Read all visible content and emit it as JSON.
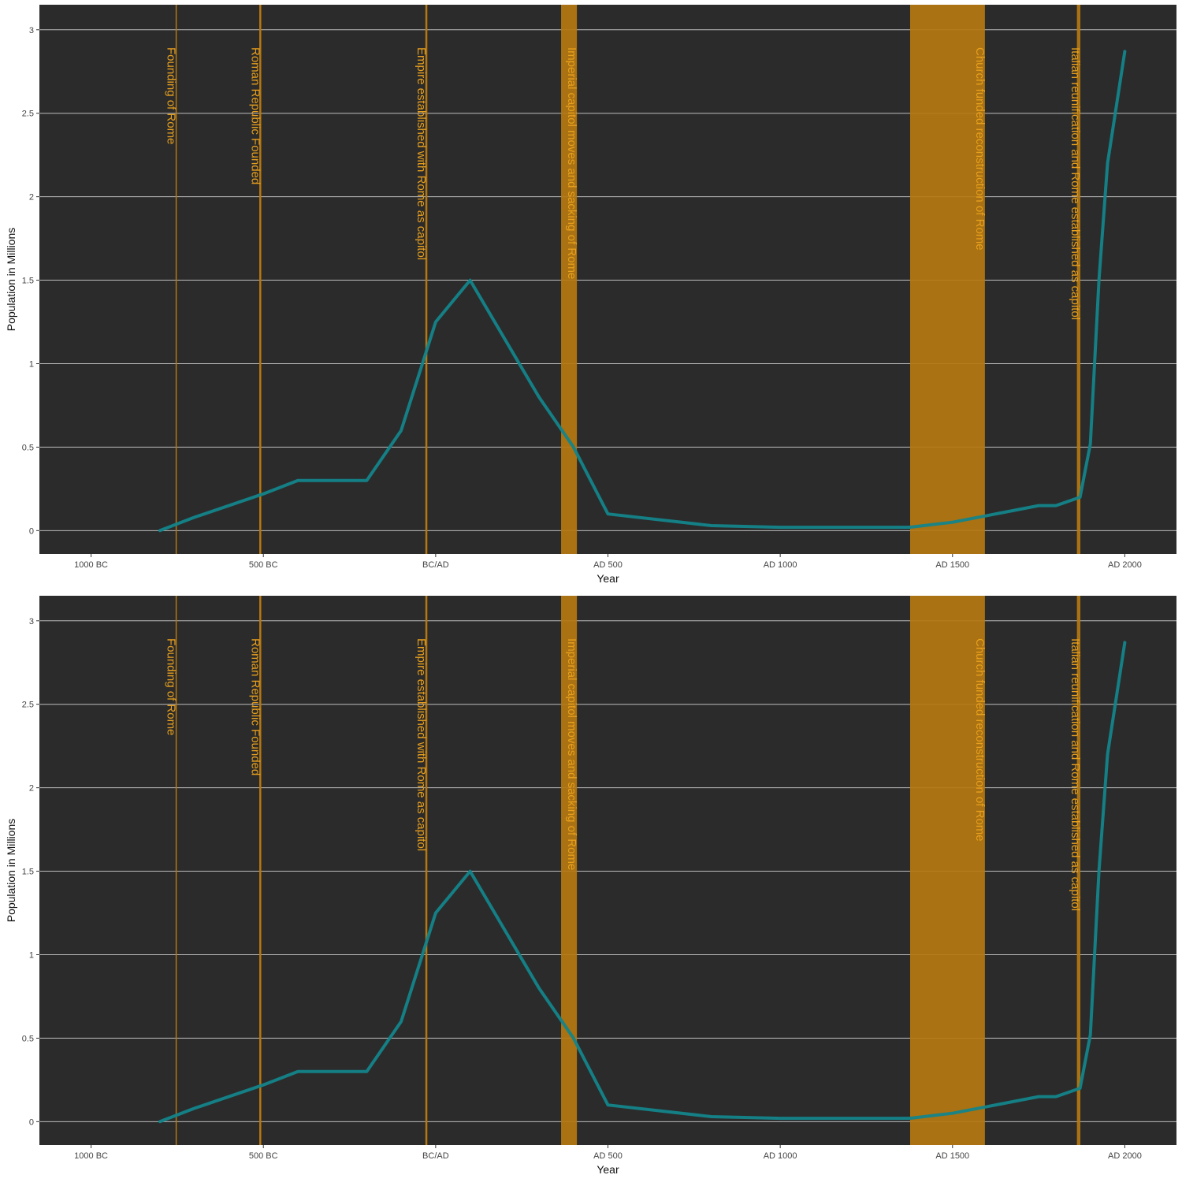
{
  "chart_data": [
    {
      "type": "line",
      "title": "",
      "xlabel": "Year",
      "ylabel": "Population in Millions",
      "xlim": [
        -1150,
        2150
      ],
      "ylim": [
        -0.14,
        3.15
      ],
      "x_ticks": [
        {
          "value": -1000,
          "label": "1000 BC"
        },
        {
          "value": -500,
          "label": "500 BC"
        },
        {
          "value": 0,
          "label": "BC/AD"
        },
        {
          "value": 500,
          "label": "AD 500"
        },
        {
          "value": 1000,
          "label": "AD 1000"
        },
        {
          "value": 1500,
          "label": "AD 1500"
        },
        {
          "value": 2000,
          "label": "AD 2000"
        }
      ],
      "y_ticks": [
        {
          "value": 0,
          "label": "0"
        },
        {
          "value": 0.5,
          "label": "0.5"
        },
        {
          "value": 1,
          "label": "1"
        },
        {
          "value": 1.5,
          "label": "1.5"
        },
        {
          "value": 2,
          "label": "2"
        },
        {
          "value": 2.5,
          "label": "2.5"
        },
        {
          "value": 3,
          "label": "3"
        }
      ],
      "grid": true,
      "colors": {
        "panel": "#2b2b2b",
        "grid": "#bdbdbd",
        "line": "#13848a",
        "event": "#b57810",
        "event_label": "#e8a01e",
        "axis_text": "#444444",
        "axis_title": "#111111"
      },
      "series": [
        {
          "x": [
            -800,
            -700,
            -500,
            -400,
            -200,
            -100,
            0,
            100,
            300,
            400,
            500,
            800,
            1000,
            1375,
            1500,
            1600,
            1750,
            1800,
            1870,
            1900,
            1925,
            1950,
            2000
          ],
          "y": [
            0.0,
            0.08,
            0.22,
            0.3,
            0.3,
            0.6,
            1.25,
            1.5,
            0.8,
            0.5,
            0.1,
            0.03,
            0.02,
            0.02,
            0.05,
            0.09,
            0.15,
            0.15,
            0.2,
            0.52,
            1.5,
            2.2,
            2.87
          ]
        }
      ],
      "events": [
        {
          "type": "line",
          "start": -753,
          "end": -753,
          "label": "Founding of Rome"
        },
        {
          "type": "line",
          "start": -509,
          "end": -509,
          "label": "Roman Republic Founded"
        },
        {
          "type": "line",
          "start": -27,
          "end": -27,
          "label": "Empire established with Rome as capitol"
        },
        {
          "type": "band",
          "start": 364,
          "end": 410,
          "label": "Imperial capitol moves and sacking of Rome"
        },
        {
          "type": "band",
          "start": 1377,
          "end": 1594,
          "label": "Church funded reconstruction of Rome"
        },
        {
          "type": "band",
          "start": 1861,
          "end": 1871,
          "label": "Italian reunification and Rome established as capitol"
        }
      ]
    },
    {
      "type": "line",
      "title": "",
      "xlabel": "Year",
      "ylabel": "Population in Millions",
      "xlim": [
        -1150,
        2150
      ],
      "ylim": [
        -0.14,
        3.15
      ],
      "x_ticks": [
        {
          "value": -1000,
          "label": "1000 BC"
        },
        {
          "value": -500,
          "label": "500 BC"
        },
        {
          "value": 0,
          "label": "BC/AD"
        },
        {
          "value": 500,
          "label": "AD 500"
        },
        {
          "value": 1000,
          "label": "AD 1000"
        },
        {
          "value": 1500,
          "label": "AD 1500"
        },
        {
          "value": 2000,
          "label": "AD 2000"
        }
      ],
      "y_ticks": [
        {
          "value": 0,
          "label": "0"
        },
        {
          "value": 0.5,
          "label": "0.5"
        },
        {
          "value": 1,
          "label": "1"
        },
        {
          "value": 1.5,
          "label": "1.5"
        },
        {
          "value": 2,
          "label": "2"
        },
        {
          "value": 2.5,
          "label": "2.5"
        },
        {
          "value": 3,
          "label": "3"
        }
      ],
      "grid": true,
      "colors": {
        "panel": "#2b2b2b",
        "grid": "#bdbdbd",
        "line": "#13848a",
        "event": "#b57810",
        "event_label": "#e8a01e",
        "axis_text": "#444444",
        "axis_title": "#111111"
      },
      "series": [
        {
          "x": [
            -800,
            -700,
            -500,
            -400,
            -200,
            -100,
            0,
            100,
            300,
            400,
            500,
            800,
            1000,
            1375,
            1500,
            1600,
            1750,
            1800,
            1870,
            1900,
            1925,
            1950,
            2000
          ],
          "y": [
            0.0,
            0.08,
            0.22,
            0.3,
            0.3,
            0.6,
            1.25,
            1.5,
            0.8,
            0.5,
            0.1,
            0.03,
            0.02,
            0.02,
            0.05,
            0.09,
            0.15,
            0.15,
            0.2,
            0.52,
            1.5,
            2.2,
            2.87
          ]
        }
      ],
      "events": [
        {
          "type": "line",
          "start": -753,
          "end": -753,
          "label": "Founding of Rome"
        },
        {
          "type": "line",
          "start": -509,
          "end": -509,
          "label": "Roman Republic Founded"
        },
        {
          "type": "line",
          "start": -27,
          "end": -27,
          "label": "Empire established with Rome as capitol"
        },
        {
          "type": "band",
          "start": 364,
          "end": 410,
          "label": "Imperial capitol moves and sacking of Rome"
        },
        {
          "type": "band",
          "start": 1377,
          "end": 1594,
          "label": "Church funded reconstruction of Rome"
        },
        {
          "type": "band",
          "start": 1861,
          "end": 1871,
          "label": "Italian reunification and Rome established as capitol"
        }
      ]
    }
  ]
}
